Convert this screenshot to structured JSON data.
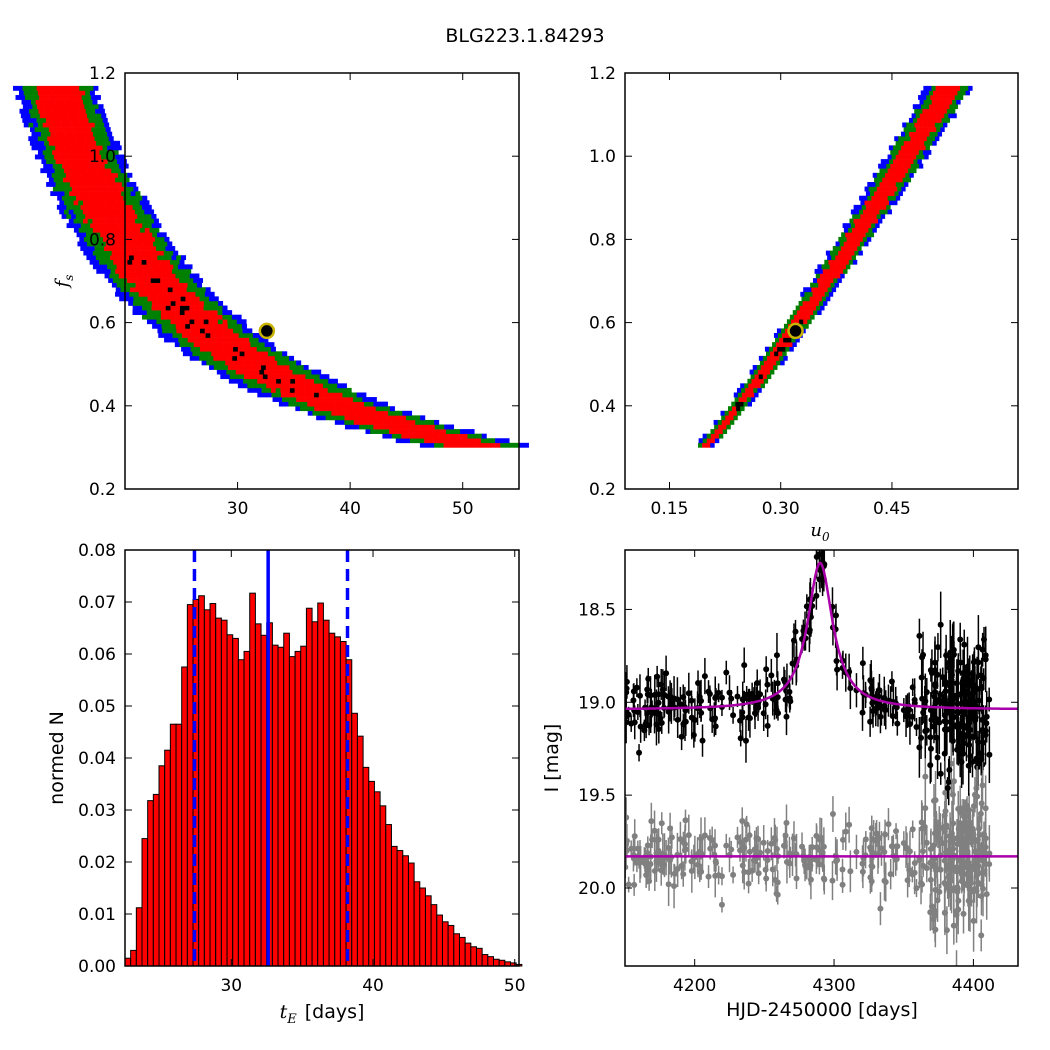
{
  "title": "BLG223.1.84293",
  "chart_data": [
    {
      "id": "fs-vs-tE",
      "type": "heatmap",
      "ylabel": "f_s",
      "xlim": [
        20,
        55
      ],
      "ylim": [
        0.2,
        1.2
      ],
      "xticks": [
        "30",
        "40",
        "50"
      ],
      "xtick_values": [
        30,
        40,
        50
      ],
      "yticks": [
        "0.2",
        "0.4",
        "0.6",
        "0.8",
        "1.0",
        "1.2"
      ],
      "ytick_values": [
        0.2,
        0.4,
        0.6,
        0.8,
        1.0,
        1.2
      ],
      "relation": "f_s ≈ 17.1 / t_E^1.03",
      "density_colors": {
        "inner": "#000000",
        "sigma1": "#ff0000",
        "sigma2": "#008000",
        "sigma3": "#0000ff"
      },
      "best_fit": {
        "x": 32.6,
        "y": 0.58
      }
    },
    {
      "id": "fs-vs-u0",
      "type": "heatmap",
      "xlabel": "u_0",
      "xlim": [
        0.09,
        0.62
      ],
      "ylim": [
        0.2,
        1.2
      ],
      "xticks": [
        "0.15",
        "0.30",
        "0.45"
      ],
      "xtick_values": [
        0.15,
        0.3,
        0.45
      ],
      "yticks": [
        "0.2",
        "0.4",
        "0.6",
        "0.8",
        "1.0",
        "1.2"
      ],
      "ytick_values": [
        0.2,
        0.4,
        0.6,
        0.8,
        1.0,
        1.2
      ],
      "relation": "f_s linear-ish in u_0 from (0.19,0.30) to (0.53,1.16)",
      "density_colors": {
        "inner": "#000000",
        "sigma1": "#ff0000",
        "sigma2": "#008000",
        "sigma3": "#0000ff"
      },
      "best_fit": {
        "x": 0.32,
        "y": 0.58
      }
    },
    {
      "id": "tE-histogram",
      "type": "bar",
      "xlabel": "t_E",
      "xlabel_unit": "[days]",
      "ylabel": "normed N",
      "xlim": [
        22.5,
        50.3
      ],
      "ylim": [
        0,
        0.08
      ],
      "xticks": [
        "30",
        "40",
        "50"
      ],
      "xtick_values": [
        30,
        40,
        50
      ],
      "yticks": [
        "0.00",
        "0.01",
        "0.02",
        "0.03",
        "0.04",
        "0.05",
        "0.06",
        "0.07",
        "0.08"
      ],
      "ytick_values": [
        0,
        0.01,
        0.02,
        0.03,
        0.04,
        0.05,
        0.06,
        0.07,
        0.08
      ],
      "bin_start": 22.5,
      "bin_width": 0.4,
      "values": [
        0.0015,
        0.003,
        0.0112,
        0.0245,
        0.0318,
        0.033,
        0.0385,
        0.0415,
        0.0465,
        0.0465,
        0.0575,
        0.0695,
        0.0705,
        0.0712,
        0.0685,
        0.0697,
        0.0669,
        0.0665,
        0.0637,
        0.063,
        0.0589,
        0.0605,
        0.0717,
        0.0658,
        0.0636,
        0.066,
        0.0617,
        0.0613,
        0.064,
        0.0595,
        0.0605,
        0.0615,
        0.0688,
        0.0662,
        0.0698,
        0.0665,
        0.064,
        0.0633,
        0.0624,
        0.0589,
        0.0486,
        0.0442,
        0.0382,
        0.0355,
        0.0335,
        0.0308,
        0.0272,
        0.023,
        0.0222,
        0.0212,
        0.0198,
        0.0162,
        0.015,
        0.0135,
        0.0118,
        0.0098,
        0.0085,
        0.0078,
        0.0062,
        0.0055,
        0.0044,
        0.0037,
        0.0034,
        0.0022,
        0.0018,
        0.0013,
        0.0011,
        0.0008,
        0.0006,
        0.0003
      ],
      "median": 32.6,
      "lower": 27.4,
      "upper": 38.2,
      "bar_color": "#ff0000",
      "line_color": "#0000ff"
    },
    {
      "id": "light-curve",
      "type": "scatter",
      "xlabel": "HJD-2450000 [days]",
      "ylabel": "I [mag]",
      "xlim": [
        4150,
        4432
      ],
      "ylim": [
        20.42,
        18.18
      ],
      "xticks": [
        "4200",
        "4300",
        "4400"
      ],
      "xtick_values": [
        4200,
        4300,
        4400
      ],
      "yticks": [
        "18.5",
        "19.0",
        "19.5",
        "20.0"
      ],
      "ytick_values": [
        18.5,
        19.0,
        19.5,
        20.0
      ],
      "series": [
        {
          "role": "data",
          "color": "#000000",
          "baseline": 19.05
        },
        {
          "role": "residuals",
          "color": "#808080",
          "baseline": 19.83
        },
        {
          "role": "model",
          "color": "#aa00aa",
          "t0": 4290,
          "peak": 18.25,
          "baseline": 19.04,
          "width": 11
        }
      ]
    }
  ]
}
